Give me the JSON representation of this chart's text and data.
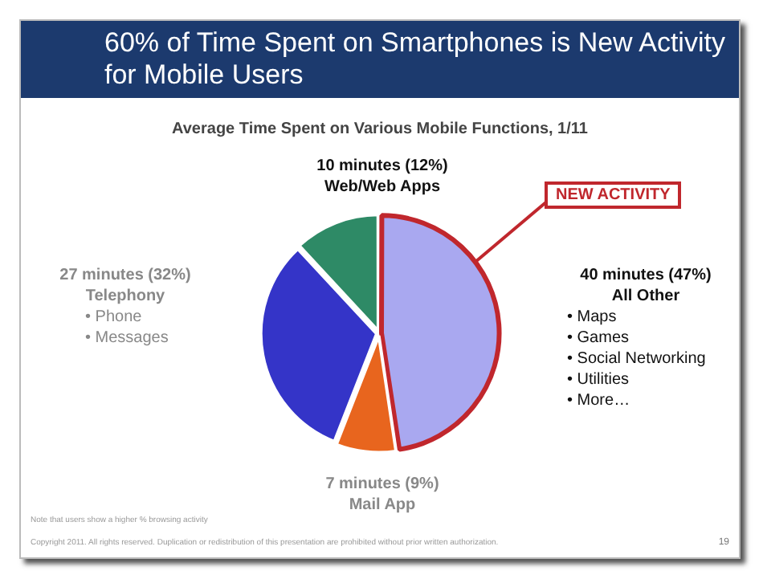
{
  "chart_data": {
    "type": "pie",
    "title": "60% of Time Spent on Smartphones is New Activity for Mobile Users",
    "subtitle": "Average Time Spent on Various Mobile Functions, 1/11",
    "categories": [
      "Web/Web Apps",
      "All Other",
      "Mail App",
      "Telephony"
    ],
    "values": [
      10,
      40,
      7,
      27
    ],
    "value_labels": [
      "10 minutes (12%)",
      "40 minutes (47%)",
      "7 minutes (9%)",
      "27 minutes (32%)"
    ],
    "colors": [
      "#2e8a66",
      "#a9a8f0",
      "#e8651e",
      "#3434c8"
    ],
    "annotations": [
      {
        "text": "NEW ACTIVITY",
        "x": "All Other"
      },
      {
        "text": "• Maps",
        "x": "All Other"
      },
      {
        "text": "• Games",
        "x": "All Other"
      },
      {
        "text": "• Social Networking",
        "x": "All Other"
      },
      {
        "text": "• Utilities",
        "x": "All Other"
      },
      {
        "text": "• More…",
        "x": "All Other"
      },
      {
        "text": "• Phone",
        "x": "Telephony"
      },
      {
        "text": "• Messages",
        "x": "Telephony"
      },
      "Note that users show a higher % browsing activity",
      "Copyright 2011. All rights reserved. Duplication or redistribution of this presentation are prohibited without prior written authorization.",
      "19"
    ]
  }
}
